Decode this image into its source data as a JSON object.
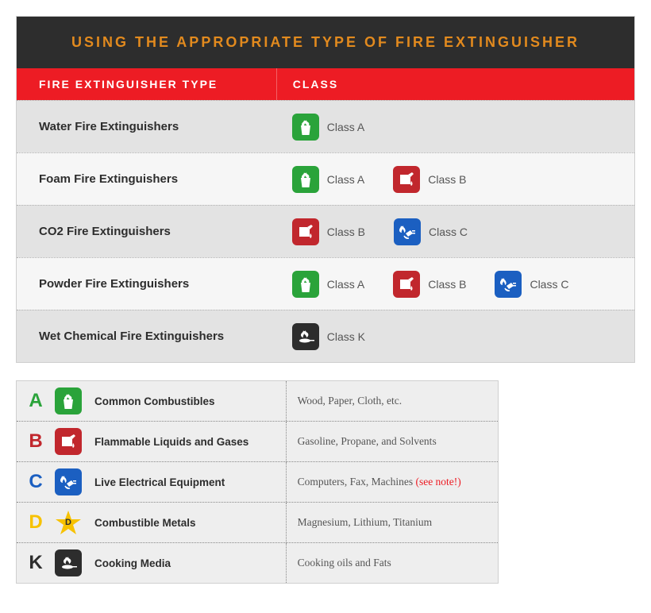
{
  "title": "USING THE APPROPRIATE TYPE OF FIRE EXTINGUISHER",
  "headers": {
    "col1": "FIRE EXTINGUISHER TYPE",
    "col2": "CLASS"
  },
  "colors": {
    "A": "#2aa33a",
    "B": "#c1272d",
    "C": "#1b5fc1",
    "D": "#f7c200",
    "K": "#2d2d2d",
    "title_bg": "#2d2d2d",
    "title_fg": "#e28a1e",
    "header_bg": "#ed1c24",
    "note": "#ed1c24"
  },
  "rows": [
    {
      "name": "Water Fire Extinguishers",
      "classes": [
        "A"
      ]
    },
    {
      "name": "Foam Fire Extinguishers",
      "classes": [
        "A",
        "B"
      ]
    },
    {
      "name": "CO2 Fire Extinguishers",
      "classes": [
        "B",
        "C"
      ]
    },
    {
      "name": "Powder Fire Extinguishers",
      "classes": [
        "A",
        "B",
        "C"
      ]
    },
    {
      "name": "Wet Chemical Fire Extinguishers",
      "classes": [
        "K"
      ]
    }
  ],
  "class_labels": {
    "A": "Class A",
    "B": "Class B",
    "C": "Class C",
    "K": "Class K"
  },
  "legend": [
    {
      "letter": "A",
      "name": "Common Combustibles",
      "desc": "Wood, Paper, Cloth, etc.",
      "note": ""
    },
    {
      "letter": "B",
      "name": "Flammable Liquids and Gases",
      "desc": "Gasoline, Propane, and Solvents",
      "note": ""
    },
    {
      "letter": "C",
      "name": "Live Electrical Equipment",
      "desc": "Computers, Fax, Machines ",
      "note": "(see note!)"
    },
    {
      "letter": "D",
      "name": "Combustible Metals",
      "desc": "Magnesium, Lithium, Titanium",
      "note": ""
    },
    {
      "letter": "K",
      "name": "Cooking Media",
      "desc": "Cooking oils and Fats",
      "note": ""
    }
  ]
}
